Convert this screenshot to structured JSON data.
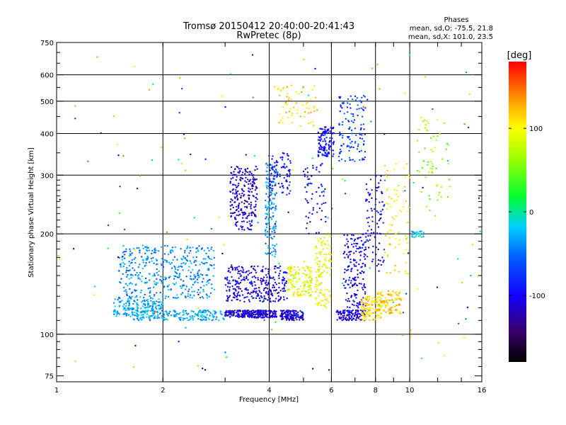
{
  "chart_data": {
    "type": "scatter",
    "title": "Tromsø 20150412 20:40:00-20:41:43",
    "subtitle": "RwPretec (8p)",
    "xlabel": "Frequency [MHz]",
    "ylabel": "Stationary phase Virtual Height [km]",
    "xscale": "log",
    "yscale": "log",
    "xlim": [
      1,
      16
    ],
    "ylim": [
      72,
      750
    ],
    "x_ticks": [
      1,
      2,
      4,
      6,
      8,
      10,
      16
    ],
    "x_tick_labels": [
      "1",
      "2",
      "4",
      "6",
      "8",
      "10",
      "16"
    ],
    "y_ticks": [
      75,
      100,
      200,
      300,
      400,
      500,
      600,
      750
    ],
    "y_tick_labels": [
      "75",
      "100",
      "200",
      "300",
      "400",
      "500",
      "600",
      "750"
    ],
    "x_gridlines": [
      2,
      4,
      6,
      8,
      10
    ],
    "y_gridlines": [
      100,
      200,
      300,
      400,
      500,
      600
    ],
    "grid": true,
    "phase_info": {
      "heading": "Phases",
      "line1": "mean, sd,O: -75.5, 21.8",
      "line2": "mean, sd,X: 101.0, 23.5"
    },
    "colorbar": {
      "label": "[deg]",
      "min": -180,
      "max": 180,
      "ticks": [
        100,
        0,
        -100
      ],
      "tick_labels": [
        "100",
        "0",
        "-100"
      ],
      "colormap": "rainbow (black-purple-blue-cyan-green-yellow-orange-red)"
    },
    "clusters": [
      {
        "x": [
          1.45,
          2.0
        ],
        "y": [
          113,
          128
        ],
        "phase": -30,
        "n": 180
      },
      {
        "x": [
          1.5,
          2.8
        ],
        "y": [
          128,
          185
        ],
        "phase": -40,
        "n": 420
      },
      {
        "x": [
          1.65,
          3.0
        ],
        "y": [
          110,
          118
        ],
        "phase": -30,
        "n": 180
      },
      {
        "x": [
          3.0,
          4.2
        ],
        "y": [
          112,
          118
        ],
        "phase": -110,
        "n": 260
      },
      {
        "x": [
          3.0,
          4.5
        ],
        "y": [
          125,
          160
        ],
        "phase": -105,
        "n": 300
      },
      {
        "x": [
          3.1,
          3.7
        ],
        "y": [
          225,
          320
        ],
        "phase": -115,
        "n": 200
      },
      {
        "x": [
          3.2,
          3.6
        ],
        "y": [
          205,
          225
        ],
        "phase": -100,
        "n": 30
      },
      {
        "x": [
          3.9,
          4.2
        ],
        "y": [
          170,
          330
        ],
        "phase": -40,
        "n": 140
      },
      {
        "x": [
          4.0,
          4.6
        ],
        "y": [
          260,
          350
        ],
        "phase": -90,
        "n": 90
      },
      {
        "x": [
          4.3,
          5.0
        ],
        "y": [
          110,
          118
        ],
        "phase": -110,
        "n": 140
      },
      {
        "x": [
          4.5,
          5.3
        ],
        "y": [
          130,
          160
        ],
        "phase": 90,
        "n": 140
      },
      {
        "x": [
          4.2,
          5.5
        ],
        "y": [
          420,
          560
        ],
        "phase": 110,
        "n": 60
      },
      {
        "x": [
          5.4,
          6.0
        ],
        "y": [
          120,
          200
        ],
        "phase": 95,
        "n": 120
      },
      {
        "x": [
          5.5,
          6.1
        ],
        "y": [
          340,
          420
        ],
        "phase": -95,
        "n": 120
      },
      {
        "x": [
          5.0,
          5.8
        ],
        "y": [
          200,
          330
        ],
        "phase": -100,
        "n": 60
      },
      {
        "x": [
          6.2,
          7.5
        ],
        "y": [
          110,
          118
        ],
        "phase": -110,
        "n": 110
      },
      {
        "x": [
          6.5,
          7.5
        ],
        "y": [
          120,
          200
        ],
        "phase": -100,
        "n": 170
      },
      {
        "x": [
          6.3,
          7.5
        ],
        "y": [
          330,
          520
        ],
        "phase": -70,
        "n": 120
      },
      {
        "x": [
          7.3,
          8.3
        ],
        "y": [
          110,
          130
        ],
        "phase": 110,
        "n": 120
      },
      {
        "x": [
          7.5,
          8.5
        ],
        "y": [
          160,
          300
        ],
        "phase": -100,
        "n": 90
      },
      {
        "x": [
          8.1,
          9.5
        ],
        "y": [
          115,
          135
        ],
        "phase": 115,
        "n": 100
      },
      {
        "x": [
          8.5,
          10.0
        ],
        "y": [
          150,
          330
        ],
        "phase": 100,
        "n": 70
      },
      {
        "x": [
          10.0,
          11.0
        ],
        "y": [
          195,
          205
        ],
        "phase": -20,
        "n": 30
      },
      {
        "x": [
          10.5,
          13.0
        ],
        "y": [
          220,
          450
        ],
        "phase": 60,
        "n": 60
      },
      {
        "x": [
          1.0,
          16.0
        ],
        "y": [
          78,
          700
        ],
        "phase": 0,
        "n": 160
      }
    ]
  }
}
